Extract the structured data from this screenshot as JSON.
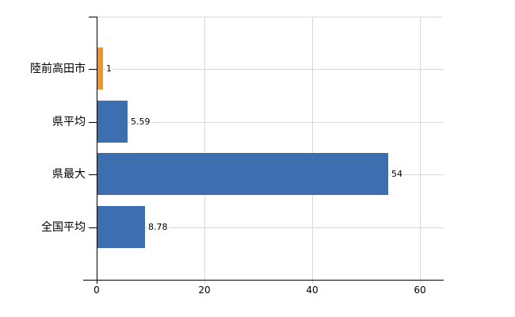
{
  "chart_data": {
    "type": "bar",
    "orientation": "horizontal",
    "title": "",
    "xlabel": "",
    "ylabel": "",
    "categories": [
      "陸前高田市",
      "県平均",
      "県最大",
      "全国平均"
    ],
    "values": [
      1,
      5.59,
      54,
      8.78
    ],
    "value_labels": [
      "1",
      "5.59",
      "54",
      "8.78"
    ],
    "x_ticks": [
      0,
      20,
      40,
      60
    ],
    "x_tick_labels": [
      "0",
      "20",
      "40",
      "60"
    ],
    "xlim": [
      0,
      64.4
    ],
    "grid": true,
    "legend": "none",
    "colors": {
      "highlight_bar": "#ef9433",
      "default_bar": "#3d6eb0",
      "gridline": "#d9d9d9",
      "axis": "#000000",
      "text": "#000000",
      "background": "#ffffff"
    },
    "bar_colors": [
      "#ef9433",
      "#3d6eb0",
      "#3d6eb0",
      "#3d6eb0"
    ]
  }
}
